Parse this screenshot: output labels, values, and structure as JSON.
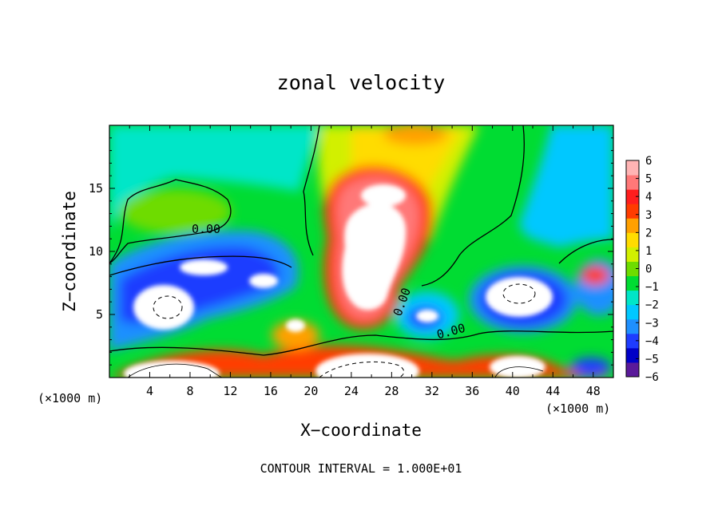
{
  "chart_data": {
    "type": "heatmap",
    "title": "zonal velocity",
    "xlabel": "X−coordinate",
    "ylabel": "Z−coordinate",
    "x_unit_left": "(×1000 m)",
    "x_unit_right": "(×1000 m)",
    "x_range": [
      0,
      50
    ],
    "z_range": [
      0,
      20
    ],
    "x_ticks": [
      "4",
      "8",
      "12",
      "16",
      "20",
      "24",
      "28",
      "32",
      "36",
      "40",
      "44",
      "48"
    ],
    "z_ticks": [
      "5",
      "10",
      "15"
    ],
    "colorbar": {
      "ticks": [
        "6",
        "5",
        "4",
        "3",
        "2",
        "1",
        "0",
        "−1",
        "−2",
        "−3",
        "−4",
        "−5",
        "−6"
      ],
      "range": [
        -6,
        6
      ],
      "colors": [
        "#5a1a9a",
        "#0000c8",
        "#1e3cff",
        "#1e90ff",
        "#00c8ff",
        "#00e6c8",
        "#00dc32",
        "#6edc00",
        "#d2f000",
        "#ffdc00",
        "#ffa000",
        "#ff3c00",
        "#ff1e1e",
        "#ff7878",
        "#ffb4b4"
      ]
    },
    "contour_labels": [
      "0.00",
      "0.00",
      "0.00"
    ],
    "contour_interval_text": "CONTOUR INTERVAL = 1.000E+01",
    "colors": {
      "background": "#ffffff",
      "frame": "#000000",
      "field_base": "#00dc32",
      "saturated_high": "#ffffff",
      "saturated_low": "#ffffff"
    }
  }
}
